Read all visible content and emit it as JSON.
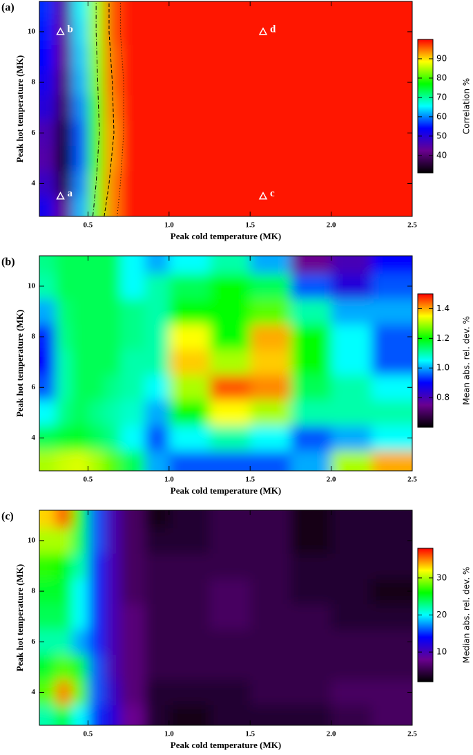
{
  "chart_data": [
    {
      "type": "heatmap",
      "panel": "(a)",
      "xlabel": "Peak cold temperature (MK)",
      "ylabel": "Peak hot temperature (MK)",
      "colorbar_label": "Correlation %",
      "xlim": [
        0.2,
        2.5
      ],
      "ylim": [
        2.7,
        11.2
      ],
      "xticks": [
        0.5,
        {
          "value": 1,
          "label": "1.0"
        },
        1.5,
        {
          "value": 2,
          "label": "2.0"
        },
        2.5
      ],
      "yticks": [
        4,
        6,
        8,
        10
      ],
      "clim": [
        31,
        100
      ],
      "cticks": [
        40,
        50,
        60,
        70,
        80,
        90
      ],
      "colormap": [
        "#000000",
        "#6a0090",
        "#0000ff",
        "#00ffff",
        "#00ff00",
        "#ffff00",
        "#ff0000"
      ],
      "xbins": [
        0.2,
        0.3,
        0.4,
        0.5,
        0.6,
        0.7,
        0.85,
        1.0,
        1.25,
        1.5,
        1.75,
        2.0,
        2.25,
        2.5
      ],
      "ybins": [
        2.7,
        3.5,
        4.5,
        5.5,
        6.5,
        7.5,
        8.5,
        9.5,
        10.5,
        11.2
      ],
      "z": [
        [
          52,
          42,
          62,
          82,
          94,
          99,
          99,
          99,
          99,
          99,
          99,
          99,
          99
        ],
        [
          48,
          36,
          60,
          82,
          94,
          99,
          99,
          99,
          99,
          99,
          99,
          99,
          99
        ],
        [
          45,
          32,
          58,
          80,
          93,
          99,
          99,
          99,
          99,
          99,
          99,
          99,
          99
        ],
        [
          46,
          34,
          58,
          80,
          93,
          99,
          99,
          99,
          99,
          99,
          99,
          99,
          99
        ],
        [
          50,
          38,
          60,
          80,
          94,
          99,
          99,
          99,
          99,
          99,
          99,
          99,
          99
        ],
        [
          52,
          40,
          62,
          82,
          95,
          99,
          99,
          99,
          99,
          99,
          99,
          99,
          99
        ],
        [
          54,
          42,
          63,
          83,
          95,
          99,
          99,
          99,
          99,
          99,
          99,
          99,
          99
        ],
        [
          55,
          43,
          64,
          84,
          96,
          99,
          99,
          99,
          99,
          99,
          99,
          99,
          99
        ],
        [
          56,
          44,
          65,
          84,
          96,
          99,
          99,
          99,
          99,
          99,
          99,
          99,
          99
        ]
      ],
      "contours": [
        {
          "dash": "6 3 1 3",
          "y": [
            2.7,
            4,
            6,
            8,
            10,
            11.2
          ],
          "x": [
            0.53,
            0.55,
            0.57,
            0.56,
            0.55,
            0.55
          ]
        },
        {
          "dash": "5 3",
          "y": [
            2.7,
            4,
            6,
            8,
            10,
            11.2
          ],
          "x": [
            0.6,
            0.63,
            0.66,
            0.65,
            0.63,
            0.63
          ]
        },
        {
          "dash": "1 3",
          "y": [
            2.7,
            4,
            6,
            8,
            10,
            11.2
          ],
          "x": [
            0.68,
            0.7,
            0.72,
            0.72,
            0.7,
            0.7
          ]
        }
      ],
      "markers": [
        {
          "label": "a",
          "x": 0.33,
          "y": 3.5
        },
        {
          "label": "b",
          "x": 0.33,
          "y": 10
        },
        {
          "label": "c",
          "x": 1.58,
          "y": 3.5
        },
        {
          "label": "d",
          "x": 1.58,
          "y": 10
        }
      ]
    },
    {
      "type": "heatmap",
      "panel": "(b)",
      "xlabel": "Peak cold temperature (MK)",
      "ylabel": "Peak hot temperature (MK)",
      "colorbar_label": "Mean abs. rel. dev. %",
      "xlim": [
        0.2,
        2.5
      ],
      "ylim": [
        2.7,
        11.2
      ],
      "xticks": [
        0.5,
        {
          "value": 1,
          "label": "1.0"
        },
        1.5,
        {
          "value": 2,
          "label": "2.0"
        },
        2.5
      ],
      "yticks": [
        4,
        6,
        8,
        10
      ],
      "clim": [
        0.6,
        1.5
      ],
      "cticks": [
        0.8,
        {
          "value": 1,
          "label": "1.0"
        },
        1.2,
        1.4
      ],
      "colormap": [
        "#000000",
        "#6a0090",
        "#0000ff",
        "#00ffff",
        "#00ff00",
        "#ffff00",
        "#ff0000"
      ],
      "xbins": [
        0.2,
        0.3,
        0.4,
        0.5,
        0.6,
        0.7,
        0.85,
        1.0,
        1.25,
        1.5,
        1.75,
        2.0,
        2.25,
        2.5
      ],
      "ybins": [
        2.7,
        3.5,
        4.5,
        5.5,
        6.5,
        7.5,
        8.5,
        9.5,
        10.5,
        11.2
      ],
      "z": [
        [
          1.3,
          1.32,
          1.33,
          1.3,
          1.25,
          1.15,
          1.0,
          0.95,
          0.95,
          0.95,
          1.0,
          1.3,
          1.4
        ],
        [
          1.15,
          1.17,
          1.18,
          1.15,
          1.12,
          1.05,
          0.95,
          1.05,
          1.1,
          1.05,
          0.95,
          1.0,
          1.05
        ],
        [
          1.05,
          1.12,
          1.15,
          1.12,
          1.1,
          1.08,
          1.0,
          1.2,
          1.35,
          1.3,
          1.1,
          1.1,
          1.1
        ],
        [
          0.95,
          1.1,
          1.15,
          1.15,
          1.12,
          1.1,
          1.05,
          1.3,
          1.45,
          1.42,
          1.15,
          1.1,
          1.05
        ],
        [
          0.9,
          1.1,
          1.15,
          1.15,
          1.15,
          1.1,
          1.1,
          1.38,
          1.3,
          1.38,
          1.2,
          1.05,
          0.95
        ],
        [
          0.92,
          1.12,
          1.15,
          1.15,
          1.15,
          1.12,
          1.1,
          1.35,
          1.2,
          1.4,
          1.2,
          1.05,
          0.95
        ],
        [
          1.0,
          1.13,
          1.15,
          1.15,
          1.15,
          1.12,
          1.1,
          1.2,
          1.2,
          1.25,
          1.1,
          1.0,
          1.0
        ],
        [
          1.1,
          1.15,
          1.15,
          1.15,
          1.15,
          1.05,
          1.1,
          1.15,
          1.2,
          1.15,
          0.95,
          0.85,
          0.95
        ],
        [
          1.12,
          1.15,
          1.15,
          1.15,
          1.15,
          1.05,
          1.0,
          1.05,
          1.1,
          1.0,
          0.75,
          0.8,
          0.9
        ]
      ]
    },
    {
      "type": "heatmap",
      "panel": "(c)",
      "xlabel": "Peak cold temperature (MK)",
      "ylabel": "Peak hot temperature (MK)",
      "colorbar_label": "Median abs. rel. dev. %",
      "xlim": [
        0.2,
        2.5
      ],
      "ylim": [
        2.7,
        11.2
      ],
      "xticks": [
        0.5,
        {
          "value": 1,
          "label": "1.0"
        },
        1.5,
        {
          "value": 2,
          "label": "2.0"
        },
        2.5
      ],
      "yticks": [
        4,
        6,
        8,
        10
      ],
      "clim": [
        2,
        38
      ],
      "cticks": [
        10,
        20,
        30
      ],
      "colormap": [
        "#000000",
        "#6a0090",
        "#0000ff",
        "#00ffff",
        "#00ff00",
        "#ffff00",
        "#ff0000"
      ],
      "xbins": [
        0.2,
        0.3,
        0.4,
        0.5,
        0.6,
        0.7,
        0.85,
        1.0,
        1.25,
        1.5,
        1.75,
        2.0,
        2.25,
        2.5
      ],
      "ybins": [
        2.7,
        3.5,
        4.5,
        5.5,
        6.5,
        7.5,
        8.5,
        9.5,
        10.5,
        11.2
      ],
      "z": [
        [
          22,
          25,
          20,
          15,
          12,
          8,
          4,
          3,
          4,
          4,
          4,
          5,
          6
        ],
        [
          28,
          35,
          28,
          16,
          11,
          7,
          4,
          4,
          4,
          5,
          5,
          6,
          6
        ],
        [
          25,
          28,
          25,
          16,
          10,
          7,
          5,
          5,
          5,
          5,
          5,
          5,
          5
        ],
        [
          22,
          22,
          18,
          15,
          10,
          7,
          5,
          5,
          5,
          5,
          5,
          5,
          5
        ],
        [
          24,
          24,
          20,
          15,
          10,
          7,
          5,
          5,
          6,
          5,
          5,
          4,
          4
        ],
        [
          25,
          25,
          20,
          15,
          10,
          6,
          5,
          5,
          6,
          5,
          4,
          4,
          3
        ],
        [
          27,
          26,
          22,
          15,
          10,
          6,
          5,
          5,
          5,
          5,
          4,
          4,
          4
        ],
        [
          30,
          30,
          24,
          16,
          10,
          6,
          4,
          4,
          5,
          5,
          3,
          4,
          4
        ],
        [
          33,
          36,
          26,
          16,
          10,
          6,
          3,
          4,
          5,
          5,
          3,
          4,
          4
        ]
      ]
    }
  ]
}
